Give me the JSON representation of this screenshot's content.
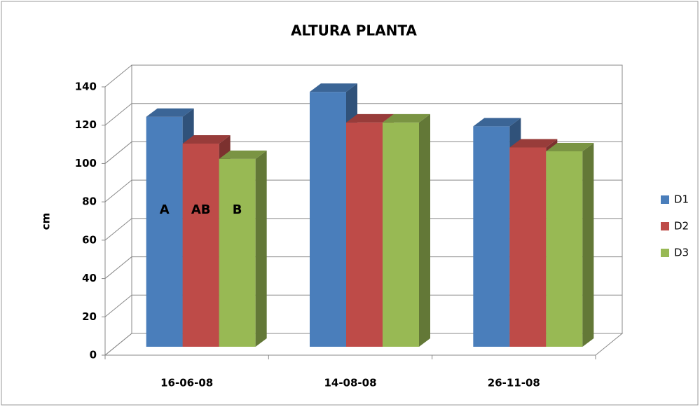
{
  "chart_data": {
    "type": "bar3d",
    "title": "ALTURA PLANTA",
    "y_label": "cm",
    "categories": [
      "16-06-08",
      "14-08-08",
      "26-11-08"
    ],
    "series": [
      {
        "name": "D1",
        "color": "#4a7ebb",
        "values": [
          120,
          133,
          115
        ]
      },
      {
        "name": "D2",
        "color": "#be4b48",
        "values": [
          106,
          117,
          104
        ]
      },
      {
        "name": "D3",
        "color": "#98b954",
        "values": [
          98,
          117,
          102
        ]
      }
    ],
    "annotations": [
      "A",
      "AB",
      "B"
    ],
    "ylim": [
      0,
      140
    ],
    "yticks": [
      0,
      20,
      40,
      60,
      80,
      100,
      120,
      140
    ],
    "grid": true,
    "legend": "right"
  }
}
